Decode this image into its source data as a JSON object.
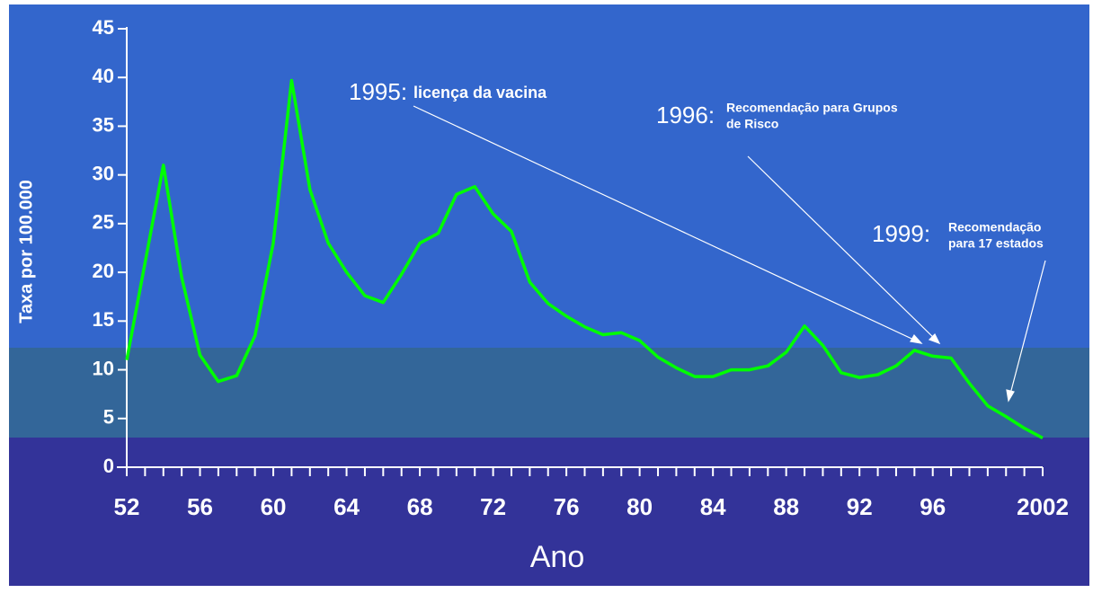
{
  "chart_data": {
    "type": "line",
    "x_label": "Ano",
    "y_label": "Taxa por 100.000",
    "categories": [
      "52",
      null,
      null,
      null,
      "56",
      null,
      null,
      null,
      "60",
      null,
      null,
      null,
      "64",
      null,
      null,
      null,
      "68",
      null,
      null,
      null,
      "72",
      null,
      null,
      null,
      "76",
      null,
      null,
      null,
      "80",
      null,
      null,
      null,
      "84",
      null,
      null,
      null,
      "88",
      null,
      null,
      null,
      "92",
      null,
      null,
      null,
      "96",
      null,
      null,
      null,
      null,
      null,
      "2002"
    ],
    "series": [
      {
        "color": "#00ff00",
        "values": [
          11,
          21,
          31,
          19.5,
          11.5,
          8.8,
          9.4,
          13.5,
          23,
          39.7,
          28.5,
          23,
          20,
          17.6,
          16.9,
          19.8,
          23,
          24,
          28,
          28.8,
          26,
          24.2,
          19,
          16.8,
          15.5,
          14.4,
          13.6,
          13.8,
          13,
          11.3,
          10.2,
          9.3,
          9.3,
          10,
          10,
          10.4,
          11.8,
          14.5,
          12.5,
          9.7,
          9.2,
          9.5,
          10.4,
          12,
          11.4,
          11.2,
          8.6,
          6.3,
          5.2,
          4,
          3
        ]
      }
    ],
    "ylim": [
      0,
      45
    ],
    "yticks": [
      0,
      5,
      10,
      15,
      20,
      25,
      30,
      35,
      40,
      45
    ],
    "grid": false,
    "annotations": [
      {
        "label": "1995:",
        "text": [
          "licença da vacina"
        ]
      },
      {
        "label": "1996:",
        "text": [
          "Recomendação para Grupos",
          "de Risco"
        ]
      },
      {
        "label": "1999:",
        "text": [
          "Recomendação",
          "para 17 estados"
        ]
      }
    ]
  }
}
